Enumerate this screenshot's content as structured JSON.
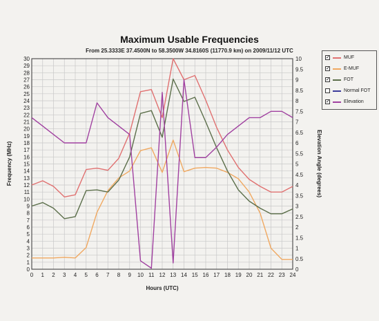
{
  "chart_data": {
    "type": "line",
    "title": "Maximum Usable Frequencies",
    "subtitle": "From  25.3333E 37.4500N to  58.3500W 34.8160S (11770.9 km) on 2009/11/12 UTC",
    "xlabel": "Hours (UTC)",
    "ylabel": "Frequency (MHz)",
    "y2label": "Elevation Angle (degrees)",
    "xlim": [
      0,
      24
    ],
    "ylim": [
      0,
      30
    ],
    "y2lim": [
      0,
      10
    ],
    "x_ticks": [
      0,
      1,
      2,
      3,
      4,
      5,
      6,
      7,
      8,
      9,
      10,
      11,
      12,
      13,
      14,
      15,
      16,
      17,
      18,
      19,
      20,
      21,
      22,
      23,
      24
    ],
    "y_ticks": [
      0,
      1,
      2,
      3,
      4,
      5,
      6,
      7,
      8,
      9,
      10,
      11,
      12,
      13,
      14,
      15,
      16,
      17,
      18,
      19,
      20,
      21,
      22,
      23,
      24,
      25,
      26,
      27,
      28,
      29,
      30
    ],
    "y2_ticks": [
      "0",
      "0.5",
      "1",
      "1.5",
      "2",
      "2.5",
      "3",
      "3.5",
      "4",
      "4.5",
      "5",
      "5.5",
      "6",
      "6.5",
      "7",
      "7.5",
      "8",
      "8.5",
      "9",
      "9.5",
      "10"
    ],
    "grid": true,
    "legend_position": "top-right",
    "series": [
      {
        "name": "MUF",
        "color": "#e07070",
        "axis": "left",
        "checked": true,
        "points": [
          [
            0,
            12.0
          ],
          [
            1,
            12.6
          ],
          [
            2,
            11.8
          ],
          [
            3,
            10.3
          ],
          [
            4,
            10.6
          ],
          [
            5,
            14.2
          ],
          [
            6,
            14.4
          ],
          [
            7,
            14.1
          ],
          [
            8,
            15.8
          ],
          [
            9,
            19.4
          ],
          [
            10,
            25.3
          ],
          [
            11,
            25.6
          ],
          [
            12,
            21.6
          ],
          [
            13,
            30.0
          ],
          [
            14,
            27.0
          ],
          [
            15,
            27.6
          ],
          [
            16,
            24.1
          ],
          [
            17,
            20.2
          ],
          [
            18,
            17.0
          ],
          [
            19,
            14.5
          ],
          [
            20,
            12.8
          ],
          [
            21,
            11.8
          ],
          [
            22,
            11.0
          ],
          [
            23,
            11.0
          ],
          [
            24,
            11.8
          ]
        ]
      },
      {
        "name": "E-MUF",
        "color": "#f0a860",
        "axis": "left",
        "checked": true,
        "points": [
          [
            0,
            1.6
          ],
          [
            1,
            1.6
          ],
          [
            2,
            1.6
          ],
          [
            3,
            1.7
          ],
          [
            4,
            1.6
          ],
          [
            5,
            3.1
          ],
          [
            6,
            8.1
          ],
          [
            7,
            11.2
          ],
          [
            8,
            13.0
          ],
          [
            9,
            14.0
          ],
          [
            10,
            16.9
          ],
          [
            11,
            17.3
          ],
          [
            12,
            13.8
          ],
          [
            13,
            18.4
          ],
          [
            14,
            13.9
          ],
          [
            15,
            14.4
          ],
          [
            16,
            14.5
          ],
          [
            17,
            14.4
          ],
          [
            18,
            13.8
          ],
          [
            19,
            12.9
          ],
          [
            20,
            11.0
          ],
          [
            21,
            8.0
          ],
          [
            22,
            3.0
          ],
          [
            23,
            1.4
          ],
          [
            24,
            1.4
          ]
        ]
      },
      {
        "name": "FOT",
        "color": "#5b6e4a",
        "axis": "left",
        "checked": true,
        "points": [
          [
            0,
            9.0
          ],
          [
            1,
            9.5
          ],
          [
            2,
            8.7
          ],
          [
            3,
            7.2
          ],
          [
            4,
            7.5
          ],
          [
            5,
            11.2
          ],
          [
            6,
            11.3
          ],
          [
            7,
            11.0
          ],
          [
            8,
            12.7
          ],
          [
            9,
            16.0
          ],
          [
            10,
            22.2
          ],
          [
            11,
            22.6
          ],
          [
            12,
            18.8
          ],
          [
            13,
            27.1
          ],
          [
            14,
            23.9
          ],
          [
            15,
            24.5
          ],
          [
            16,
            21.0
          ],
          [
            17,
            17.3
          ],
          [
            18,
            14.0
          ],
          [
            19,
            11.3
          ],
          [
            20,
            9.7
          ],
          [
            21,
            8.7
          ],
          [
            22,
            7.9
          ],
          [
            23,
            7.9
          ],
          [
            24,
            8.6
          ]
        ]
      },
      {
        "name": "Normal FOT",
        "color": "#3a3a9a",
        "axis": "left",
        "checked": false,
        "points": []
      },
      {
        "name": "Elevation",
        "color": "#a040a0",
        "axis": "right",
        "checked": true,
        "points": [
          [
            0,
            7.2
          ],
          [
            1,
            6.8
          ],
          [
            2,
            6.4
          ],
          [
            3,
            6.0
          ],
          [
            4,
            6.0
          ],
          [
            5,
            6.0
          ],
          [
            6,
            7.9
          ],
          [
            7,
            7.2
          ],
          [
            8,
            6.8
          ],
          [
            9,
            6.4
          ],
          [
            10,
            0.4
          ],
          [
            11,
            0.05
          ],
          [
            12,
            8.4
          ],
          [
            13,
            0.3
          ],
          [
            14,
            9.0
          ],
          [
            15,
            5.3
          ],
          [
            16,
            5.3
          ],
          [
            17,
            5.8
          ],
          [
            18,
            6.4
          ],
          [
            19,
            6.8
          ],
          [
            20,
            7.2
          ],
          [
            21,
            7.2
          ],
          [
            22,
            7.5
          ],
          [
            23,
            7.5
          ],
          [
            24,
            7.2
          ]
        ]
      }
    ]
  }
}
